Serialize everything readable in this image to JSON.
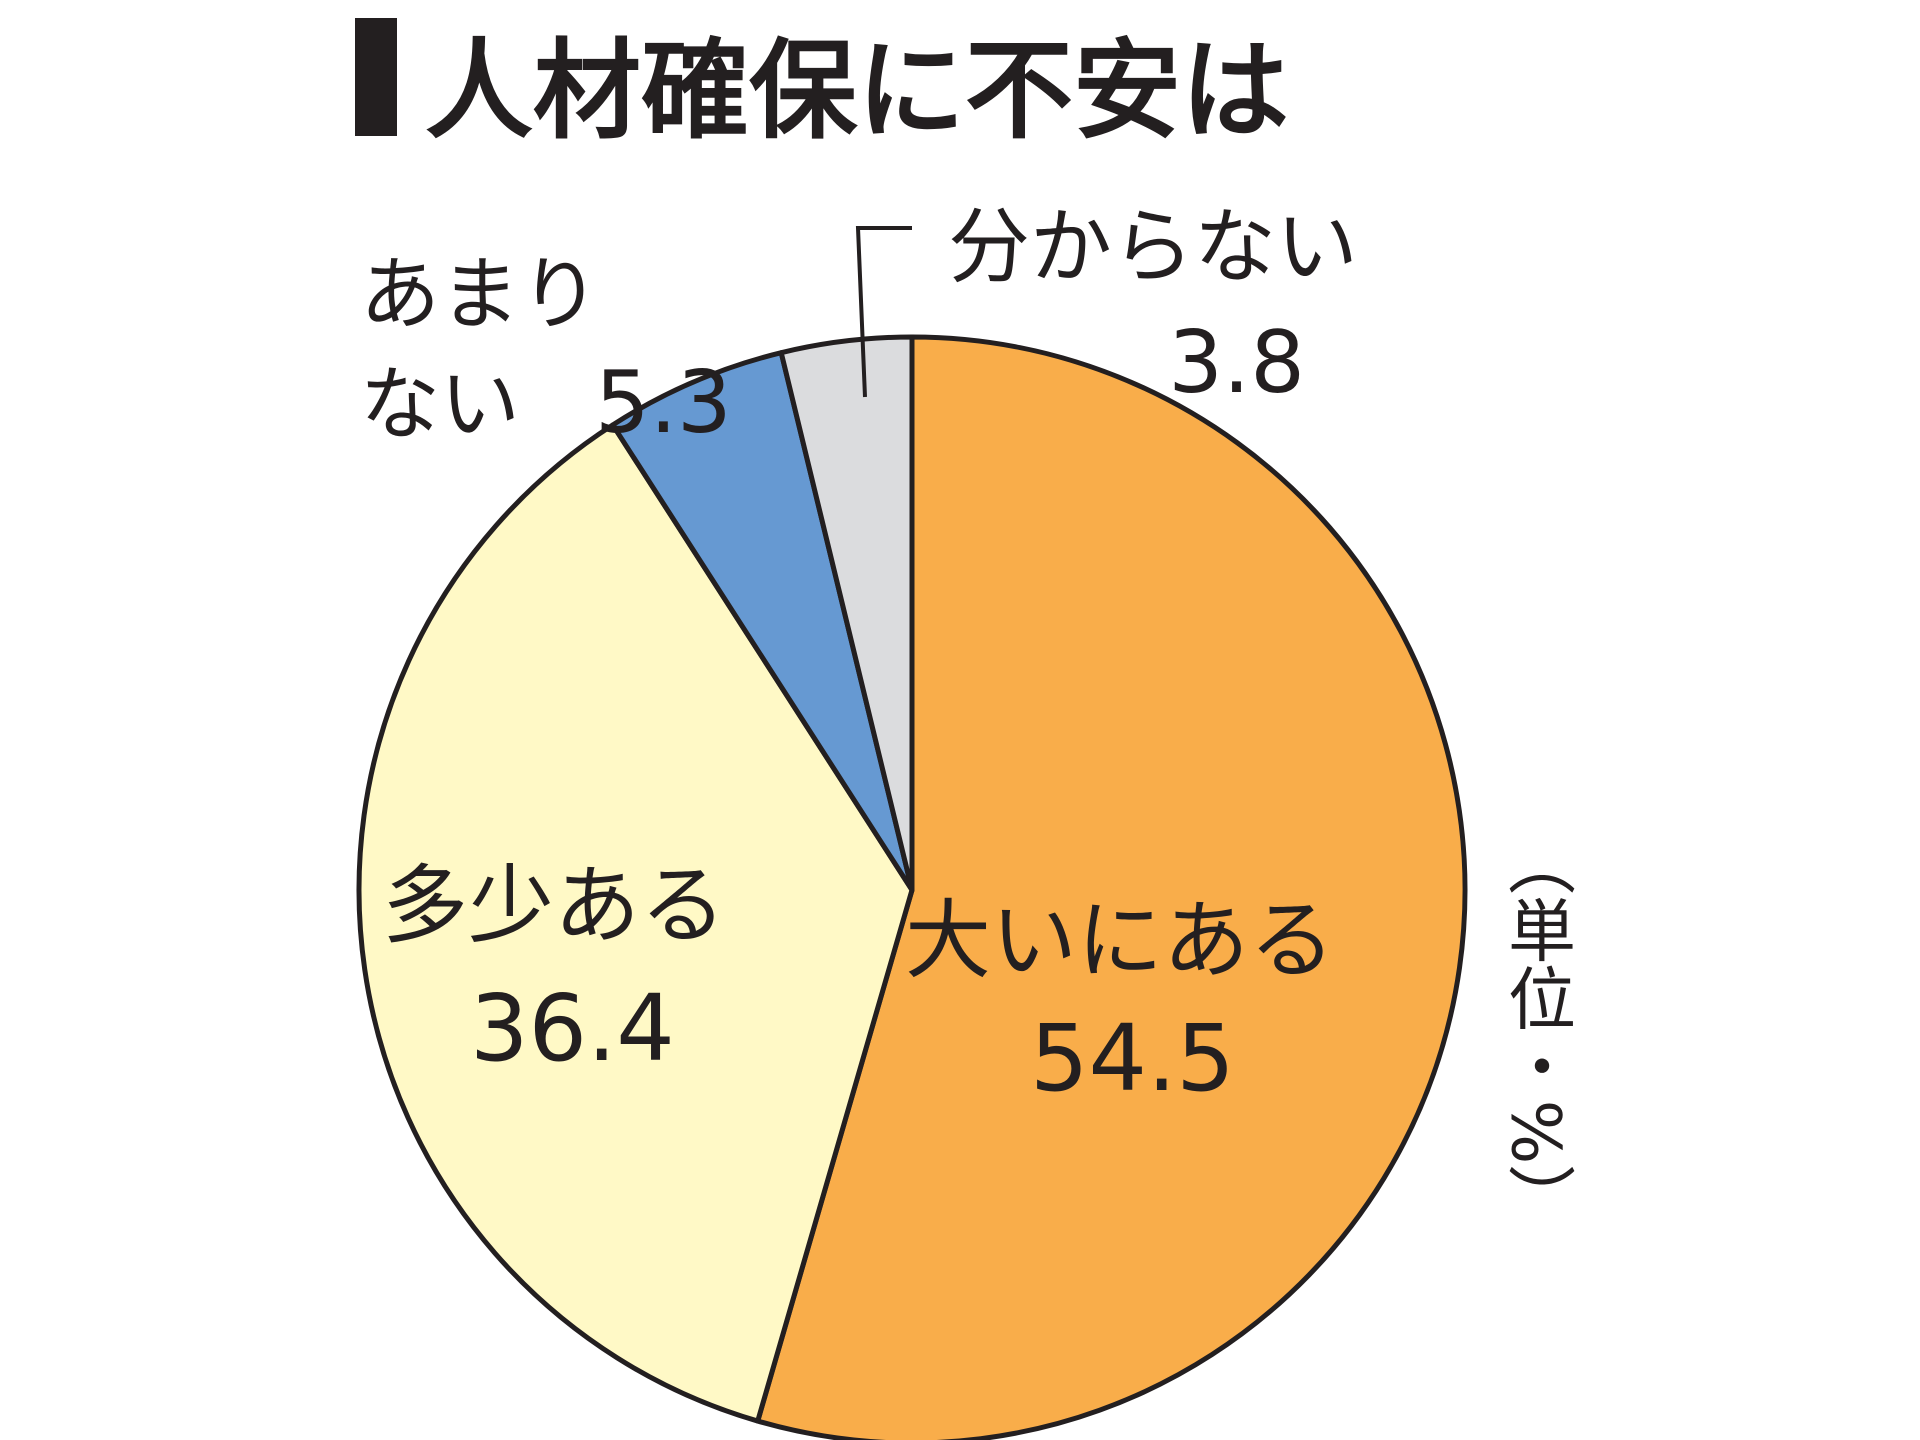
{
  "chart_data": {
    "type": "pie",
    "title": "人材確保に不安は",
    "unit_note": "（単位・%）",
    "slices": [
      {
        "label": "大いにある",
        "value": 54.5,
        "value_text": "54.5",
        "color": "#f9ad4a"
      },
      {
        "label": "多少ある",
        "value": 36.4,
        "value_text": "36.4",
        "color": "#fff9c6"
      },
      {
        "label": "あまりない",
        "label_lines": [
          "あまり",
          "ない"
        ],
        "value": 5.3,
        "value_text": "5.3",
        "color": "#6699d2"
      },
      {
        "label": "分からない",
        "value": 3.8,
        "value_text": "3.8",
        "color": "#dbdcde"
      }
    ],
    "start": "12 o'clock",
    "direction": "clockwise",
    "legend": "none"
  }
}
